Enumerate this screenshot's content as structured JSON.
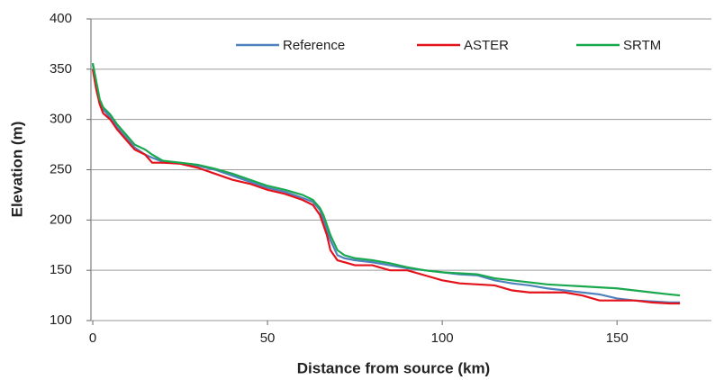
{
  "chart_data": {
    "type": "line",
    "x_label": "Distance from source (km)",
    "y_label": "Elevation (m)",
    "x": [
      0,
      1,
      2,
      3,
      5,
      7,
      10,
      12,
      15,
      17,
      20,
      25,
      30,
      35,
      40,
      45,
      50,
      55,
      60,
      63,
      65,
      66,
      67,
      68,
      70,
      72,
      75,
      80,
      85,
      90,
      95,
      100,
      105,
      110,
      115,
      120,
      125,
      130,
      135,
      140,
      145,
      150,
      155,
      160,
      165,
      168
    ],
    "series": [
      {
        "name": "Reference",
        "color": "#4f81bd",
        "values": [
          355,
          335,
          318,
          310,
          302,
          292,
          280,
          272,
          265,
          262,
          258,
          257,
          254,
          250,
          244,
          238,
          232,
          228,
          222,
          218,
          210,
          200,
          190,
          180,
          165,
          162,
          160,
          158,
          155,
          152,
          150,
          148,
          146,
          145,
          140,
          137,
          135,
          132,
          130,
          128,
          126,
          122,
          120,
          119,
          118,
          118
        ]
      },
      {
        "name": "ASTER",
        "color": "#e3121b",
        "values": [
          350,
          330,
          315,
          306,
          300,
          290,
          278,
          270,
          265,
          257,
          257,
          256,
          252,
          246,
          240,
          236,
          230,
          226,
          220,
          215,
          205,
          195,
          185,
          170,
          160,
          158,
          155,
          155,
          150,
          150,
          145,
          140,
          137,
          136,
          135,
          130,
          128,
          128,
          128,
          125,
          120,
          120,
          120,
          118,
          117,
          117
        ]
      },
      {
        "name": "SRTM",
        "color": "#1aa84f",
        "values": [
          356,
          338,
          320,
          312,
          305,
          295,
          283,
          275,
          270,
          265,
          259,
          257,
          255,
          251,
          246,
          240,
          234,
          230,
          225,
          220,
          212,
          205,
          195,
          185,
          170,
          165,
          162,
          160,
          157,
          153,
          150,
          148,
          147,
          146,
          142,
          140,
          138,
          136,
          135,
          134,
          133,
          132,
          130,
          128,
          126,
          125
        ]
      }
    ],
    "xlim": [
      0,
      177
    ],
    "ylim": [
      100,
      400
    ],
    "xticks": [
      0,
      50,
      100,
      150
    ],
    "yticks": [
      100,
      150,
      200,
      250,
      300,
      350,
      400
    ],
    "grid": true,
    "legend": "top"
  }
}
